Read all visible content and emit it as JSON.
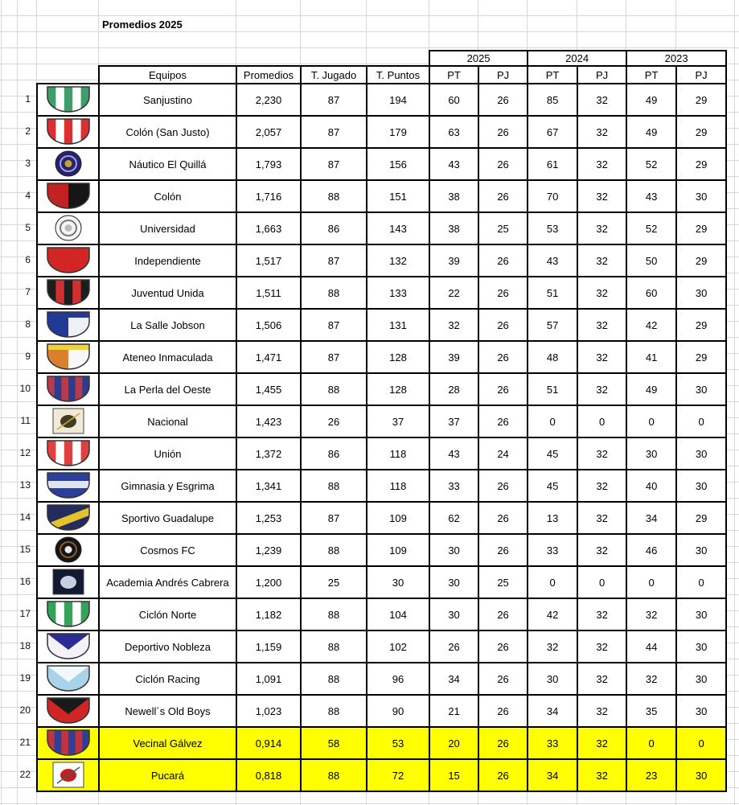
{
  "title": "Promedios 2025",
  "table": {
    "headers": {
      "equipos": "Equipos",
      "promedios": "Promedios",
      "jugado": "T. Jugado",
      "puntos": "T. Puntos",
      "pt": "PT",
      "pj": "PJ"
    },
    "years": [
      "2025",
      "2024",
      "2023"
    ],
    "highlight_color": "#ffff00",
    "rows": [
      {
        "pos": "1",
        "team": "Sanjustino",
        "prom": "2,230",
        "tj": "87",
        "tp": "194",
        "v": [
          "60",
          "26",
          "85",
          "32",
          "49",
          "29"
        ],
        "hl": false,
        "badge": {
          "kind": "stripes",
          "n": 5,
          "c1": "#3d9e68",
          "c2": "#ffffff"
        }
      },
      {
        "pos": "2",
        "team": "Colón (San Justo)",
        "prom": "2,057",
        "tj": "87",
        "tp": "179",
        "v": [
          "63",
          "26",
          "67",
          "32",
          "49",
          "29"
        ],
        "hl": false,
        "badge": {
          "kind": "stripes",
          "n": 5,
          "c1": "#dd2f2f",
          "c2": "#ffffff"
        }
      },
      {
        "pos": "3",
        "team": "Náutico El Quillá",
        "prom": "1,793",
        "tj": "87",
        "tp": "156",
        "v": [
          "43",
          "26",
          "61",
          "32",
          "52",
          "29"
        ],
        "hl": false,
        "badge": {
          "kind": "circle",
          "c1": "#262173",
          "c2": "#9aa6e0",
          "c3": "#c9a227"
        }
      },
      {
        "pos": "4",
        "team": "Colón",
        "prom": "1,716",
        "tj": "88",
        "tp": "151",
        "v": [
          "38",
          "26",
          "70",
          "32",
          "43",
          "30"
        ],
        "hl": false,
        "badge": {
          "kind": "half",
          "c1": "#c32222",
          "c2": "#161616"
        }
      },
      {
        "pos": "5",
        "team": "Universidad",
        "prom": "1,663",
        "tj": "86",
        "tp": "143",
        "v": [
          "38",
          "25",
          "53",
          "32",
          "52",
          "29"
        ],
        "hl": false,
        "badge": {
          "kind": "circle",
          "c1": "#f5f5f5",
          "c2": "#777777",
          "c3": "#bbbbbb"
        }
      },
      {
        "pos": "6",
        "team": "Independiente",
        "prom": "1,517",
        "tj": "87",
        "tp": "132",
        "v": [
          "39",
          "26",
          "43",
          "32",
          "50",
          "29"
        ],
        "hl": false,
        "badge": {
          "kind": "stripes",
          "n": 1,
          "c1": "#d42525",
          "c2": "#d42525"
        }
      },
      {
        "pos": "7",
        "team": "Juventud Unida",
        "prom": "1,511",
        "tj": "88",
        "tp": "133",
        "v": [
          "22",
          "26",
          "51",
          "32",
          "60",
          "30"
        ],
        "hl": false,
        "badge": {
          "kind": "stripes",
          "n": 5,
          "c1": "#1d1d1d",
          "c2": "#d03030"
        }
      },
      {
        "pos": "8",
        "team": "La Salle Jobson",
        "prom": "1,506",
        "tj": "87",
        "tp": "131",
        "v": [
          "32",
          "26",
          "57",
          "32",
          "42",
          "29"
        ],
        "hl": false,
        "badge": {
          "kind": "half",
          "c1": "#223a96",
          "c2": "#eef0f8",
          "c3": "#223a96"
        }
      },
      {
        "pos": "9",
        "team": "Ateneo Inmaculada",
        "prom": "1,471",
        "tj": "87",
        "tp": "128",
        "v": [
          "39",
          "26",
          "48",
          "32",
          "41",
          "29"
        ],
        "hl": false,
        "badge": {
          "kind": "half",
          "c1": "#d97f2e",
          "c2": "#f8f8f8",
          "c3": "#f2d23a"
        }
      },
      {
        "pos": "10",
        "team": "La Perla del Oeste",
        "prom": "1,455",
        "tj": "88",
        "tp": "128",
        "v": [
          "28",
          "26",
          "51",
          "32",
          "49",
          "30"
        ],
        "hl": false,
        "badge": {
          "kind": "stripes",
          "n": 6,
          "c1": "#b93a4a",
          "c2": "#2c3c8f"
        }
      },
      {
        "pos": "11",
        "team": "Nacional",
        "prom": "1,423",
        "tj": "26",
        "tp": "37",
        "v": [
          "37",
          "26",
          "0",
          "0",
          "0",
          "0"
        ],
        "hl": false,
        "badge": {
          "kind": "square",
          "c1": "#efe9d6",
          "c2": "#403c28",
          "c3": "#cfae35"
        }
      },
      {
        "pos": "12",
        "team": "Unión",
        "prom": "1,372",
        "tj": "86",
        "tp": "118",
        "v": [
          "43",
          "24",
          "45",
          "32",
          "30",
          "30"
        ],
        "hl": false,
        "badge": {
          "kind": "stripes",
          "n": 5,
          "c1": "#e04040",
          "c2": "#ffffff"
        }
      },
      {
        "pos": "13",
        "team": "Gimnasia y Esgrima",
        "prom": "1,341",
        "tj": "88",
        "tp": "118",
        "v": [
          "33",
          "26",
          "45",
          "32",
          "40",
          "30"
        ],
        "hl": false,
        "badge": {
          "kind": "band",
          "c1": "#2b3f9e",
          "c2": "#dfe4f2"
        }
      },
      {
        "pos": "14",
        "team": "Sportivo Guadalupe",
        "prom": "1,253",
        "tj": "87",
        "tp": "109",
        "v": [
          "62",
          "26",
          "13",
          "32",
          "34",
          "29"
        ],
        "hl": false,
        "badge": {
          "kind": "diag",
          "c1": "#232c5c",
          "c2": "#e3c22e"
        }
      },
      {
        "pos": "15",
        "team": "Cosmos FC",
        "prom": "1,239",
        "tj": "88",
        "tp": "109",
        "v": [
          "30",
          "26",
          "33",
          "32",
          "46",
          "30"
        ],
        "hl": false,
        "badge": {
          "kind": "circle",
          "c1": "#151515",
          "c2": "#8a5a35",
          "c3": "#e8e8e8"
        }
      },
      {
        "pos": "16",
        "team": "Academia Andrés Cabrera",
        "prom": "1,200",
        "tj": "25",
        "tp": "30",
        "v": [
          "30",
          "25",
          "0",
          "0",
          "0",
          "0"
        ],
        "hl": false,
        "badge": {
          "kind": "square",
          "c1": "#121933",
          "c2": "#c8cede"
        }
      },
      {
        "pos": "17",
        "team": "Ciclón Norte",
        "prom": "1,182",
        "tj": "88",
        "tp": "104",
        "v": [
          "30",
          "26",
          "42",
          "32",
          "32",
          "30"
        ],
        "hl": false,
        "badge": {
          "kind": "stripes",
          "n": 5,
          "c1": "#37a35a",
          "c2": "#ffffff"
        }
      },
      {
        "pos": "18",
        "team": "Deportivo Nobleza",
        "prom": "1,159",
        "tj": "88",
        "tp": "102",
        "v": [
          "26",
          "26",
          "32",
          "32",
          "44",
          "30"
        ],
        "hl": false,
        "badge": {
          "kind": "chevron",
          "c1": "#f2f2f8",
          "c2": "#2b2b96"
        }
      },
      {
        "pos": "19",
        "team": "Ciclón Racing",
        "prom": "1,091",
        "tj": "88",
        "tp": "96",
        "v": [
          "34",
          "26",
          "30",
          "32",
          "32",
          "30"
        ],
        "hl": false,
        "badge": {
          "kind": "chevron",
          "c1": "#a9d3ea",
          "c2": "#f2f8fc"
        }
      },
      {
        "pos": "20",
        "team": "Newell´s Old Boys",
        "prom": "1,023",
        "tj": "88",
        "tp": "90",
        "v": [
          "21",
          "26",
          "34",
          "32",
          "35",
          "30"
        ],
        "hl": false,
        "badge": {
          "kind": "chevron",
          "c1": "#cf2525",
          "c2": "#1a1a1a"
        }
      },
      {
        "pos": "21",
        "team": "Vecinal Gálvez",
        "prom": "0,914",
        "tj": "58",
        "tp": "53",
        "v": [
          "20",
          "26",
          "33",
          "32",
          "0",
          "0"
        ],
        "hl": true,
        "badge": {
          "kind": "stripes",
          "n": 6,
          "c1": "#bf3440",
          "c2": "#323f96"
        }
      },
      {
        "pos": "22",
        "team": "Pucará",
        "prom": "0,818",
        "tj": "88",
        "tp": "72",
        "v": [
          "15",
          "26",
          "34",
          "32",
          "23",
          "30"
        ],
        "hl": true,
        "badge": {
          "kind": "square",
          "c1": "#ffffff",
          "c2": "#c22020",
          "c3": "#555555"
        }
      }
    ]
  }
}
